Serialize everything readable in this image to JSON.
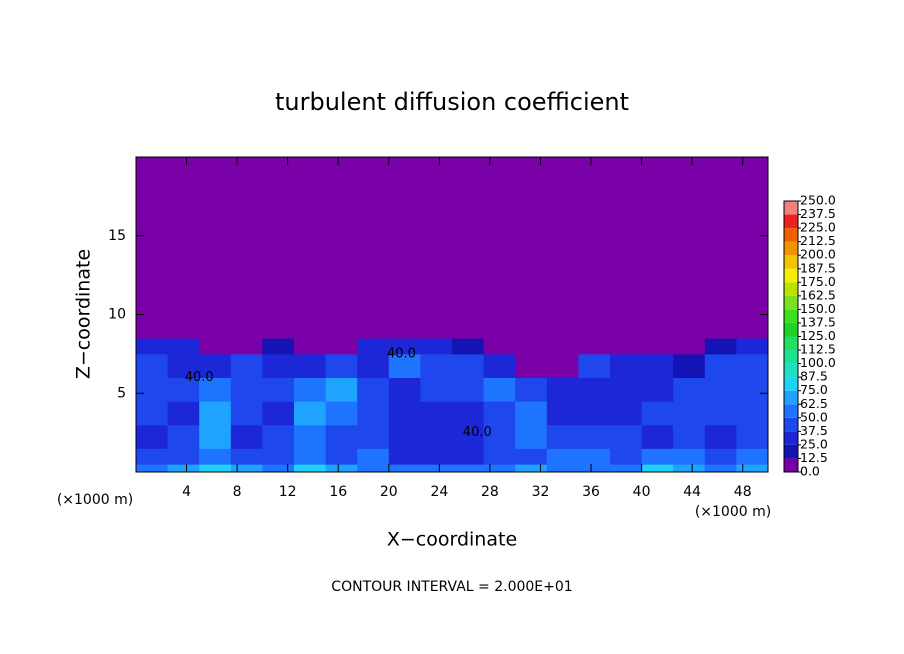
{
  "chart_data": {
    "type": "heatmap",
    "title": "turbulent diffusion coefficient",
    "x_label": "X−coordinate",
    "y_label": "Z−coordinate",
    "x_unit_label": "(×1000 m)",
    "y_unit_label": "(×1000 m)",
    "footnote": "CONTOUR INTERVAL = 2.000E+01",
    "xlim": [
      0,
      50
    ],
    "ylim": [
      0,
      20
    ],
    "xticks": [
      4,
      8,
      12,
      16,
      20,
      24,
      28,
      32,
      36,
      40,
      44,
      48
    ],
    "yticks": [
      5,
      10,
      15
    ],
    "x_edges": [
      0,
      2.5,
      5,
      7.5,
      10,
      12.5,
      15,
      17.5,
      20,
      22.5,
      25,
      27.5,
      30,
      32.5,
      35,
      37.5,
      40,
      42.5,
      45,
      47.5,
      50
    ],
    "y_edges": [
      0,
      0.5,
      1.5,
      3,
      4.5,
      6,
      7.5,
      8.5,
      20
    ],
    "values": [
      [
        62,
        70,
        75,
        70,
        62,
        75,
        70,
        62,
        55,
        50,
        55,
        62,
        70,
        62,
        55,
        62,
        75,
        70,
        62,
        70
      ],
      [
        40,
        45,
        60,
        40,
        45,
        55,
        40,
        50,
        35,
        30,
        30,
        40,
        45,
        55,
        50,
        45,
        55,
        60,
        45,
        50
      ],
      [
        35,
        40,
        65,
        35,
        40,
        60,
        40,
        45,
        30,
        30,
        35,
        40,
        50,
        40,
        45,
        40,
        35,
        40,
        35,
        45
      ],
      [
        40,
        35,
        70,
        45,
        35,
        65,
        50,
        40,
        30,
        30,
        35,
        40,
        50,
        35,
        30,
        30,
        40,
        45,
        40,
        40
      ],
      [
        45,
        40,
        60,
        40,
        45,
        55,
        65,
        45,
        35,
        40,
        45,
        55,
        45,
        35,
        30,
        25,
        35,
        40,
        45,
        40
      ],
      [
        40,
        35,
        30,
        45,
        35,
        30,
        40,
        35,
        50,
        40,
        45,
        30,
        10,
        5,
        40,
        35,
        35,
        20,
        40,
        45
      ],
      [
        35,
        30,
        5,
        10,
        20,
        5,
        5,
        25,
        30,
        35,
        20,
        5,
        0,
        0,
        5,
        5,
        0,
        0,
        20,
        30
      ],
      [
        0,
        0,
        0,
        0,
        0,
        0,
        0,
        0,
        0,
        0,
        0,
        0,
        0,
        0,
        0,
        0,
        0,
        0,
        0,
        0
      ]
    ],
    "contour_labels": [
      {
        "label": "40.0",
        "x": 21,
        "y": 7.5
      },
      {
        "label": "40.0",
        "x": 5,
        "y": 6
      },
      {
        "label": "40.0",
        "x": 27,
        "y": 2.5
      }
    ],
    "colorbar_ticks": [
      {
        "value": 0,
        "label": "0.0"
      },
      12.5,
      {
        "value": 25,
        "label": "25.0"
      },
      37.5,
      {
        "value": 50,
        "label": "50.0"
      },
      62.5,
      {
        "value": 75,
        "label": "75.0"
      },
      87.5,
      {
        "value": 100,
        "label": "100.0"
      },
      112.5,
      {
        "value": 125,
        "label": "125.0"
      },
      137.5,
      {
        "value": 150,
        "label": "150.0"
      },
      162.5,
      {
        "value": 175,
        "label": "175.0"
      },
      187.5,
      {
        "value": 200,
        "label": "200.0"
      },
      212.5,
      {
        "value": 225,
        "label": "225.0"
      },
      237.5,
      {
        "value": 250,
        "label": "250.0"
      }
    ],
    "colors": [
      "#7a00a8",
      "#1414b4",
      "#1c28d8",
      "#1e48ee",
      "#1e74ff",
      "#1ea4ff",
      "#1ed2f8",
      "#1ee0c4",
      "#1ee094",
      "#1ee060",
      "#1ed22a",
      "#3ce01e",
      "#7ce01e",
      "#bce000",
      "#f0f000",
      "#f0c400",
      "#f09400",
      "#f06000",
      "#f02020",
      "#f08080"
    ]
  }
}
